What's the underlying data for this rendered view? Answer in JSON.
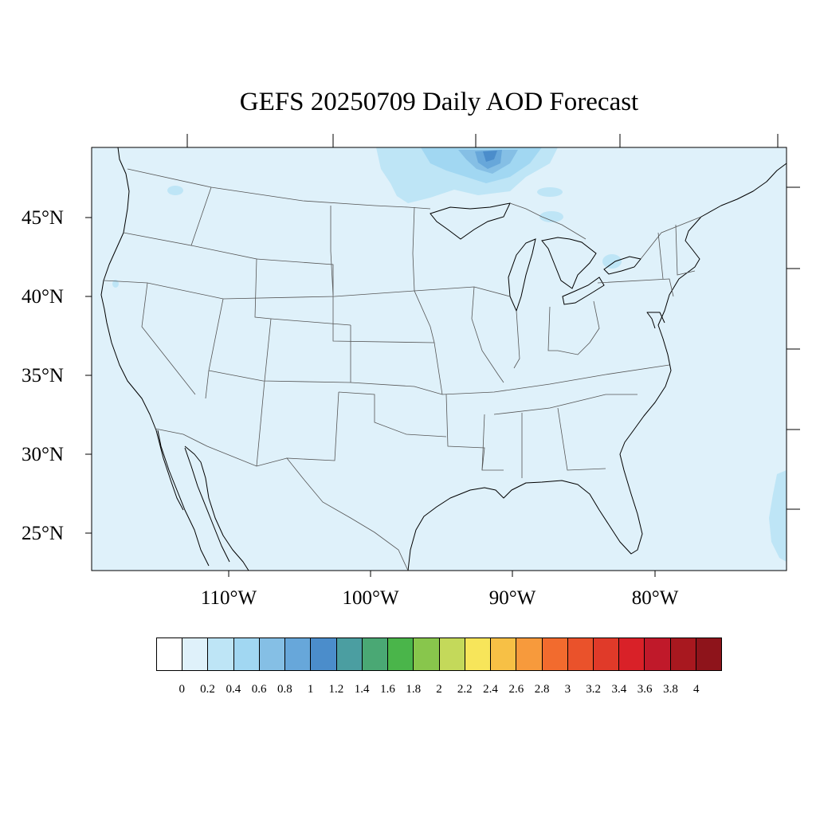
{
  "title": "GEFS 20250709 Daily AOD Forecast",
  "map": {
    "background_color": "#dff1fa",
    "lat_labels": [
      "45°N",
      "40°N",
      "35°N",
      "30°N",
      "25°N"
    ],
    "lon_labels": [
      "110°W",
      "100°W",
      "90°W",
      "80°W"
    ]
  },
  "colorbar": {
    "colors": [
      "#ffffff",
      "#dff1fa",
      "#bee5f6",
      "#a1d7f2",
      "#85bfe5",
      "#67a7da",
      "#4b8dcb",
      "#4b9ea1",
      "#4aa874",
      "#4ab54a",
      "#88c64c",
      "#c4d95a",
      "#f7e55a",
      "#f7c045",
      "#f79a3c",
      "#f26b2e",
      "#ea522b",
      "#e03a29",
      "#d92128",
      "#c0192a",
      "#a8181f",
      "#8e141b"
    ],
    "labels": [
      "0",
      "0.2",
      "0.4",
      "0.6",
      "0.8",
      "1",
      "1.2",
      "1.4",
      "1.6",
      "1.8",
      "2",
      "2.2",
      "2.4",
      "2.6",
      "2.8",
      "3",
      "3.2",
      "3.4",
      "3.6",
      "3.8",
      "4"
    ]
  }
}
